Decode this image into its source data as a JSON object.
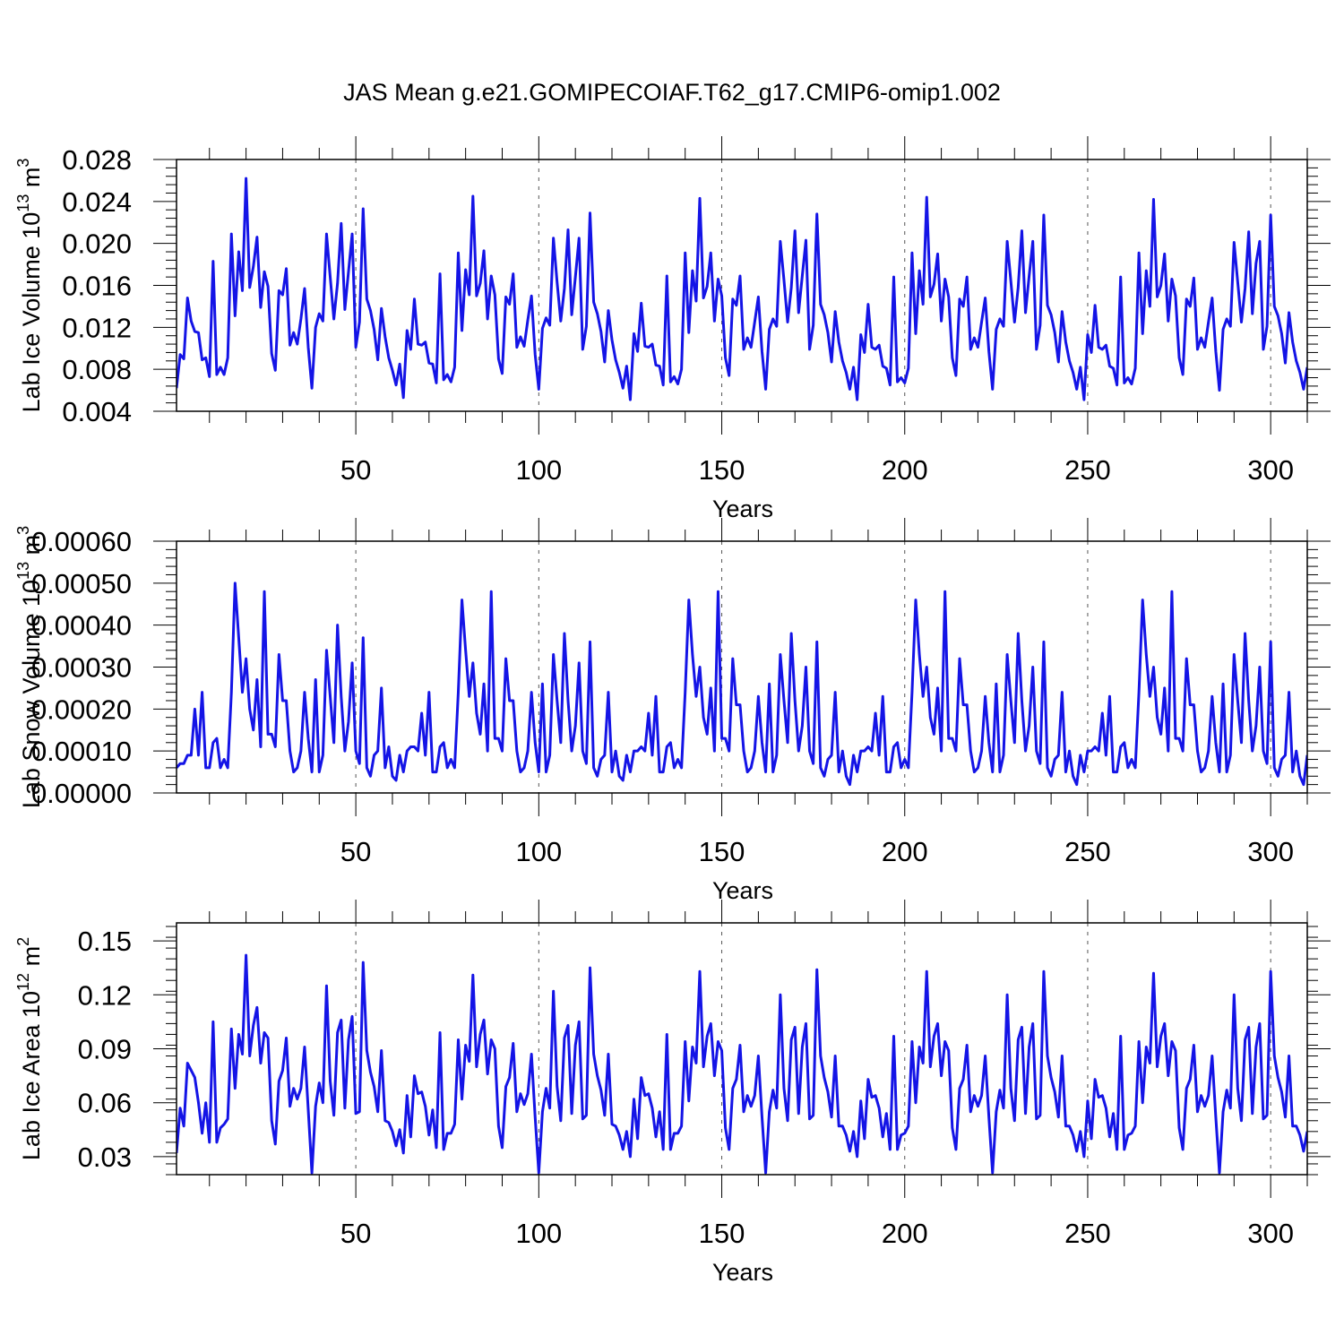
{
  "title": "JAS Mean g.e21.GOMIPECOIAF.T62_g17.CMIP6-omip1.002",
  "colors": {
    "line": "#1414e6",
    "axes": "#000000",
    "grid": "#555555"
  },
  "chart_data": [
    {
      "type": "line",
      "name": "panel-ice-volume",
      "ylabel": "Lab Ice Volume 10^13 m^3",
      "ylabel_parts": {
        "base": "Lab Ice Volume 10",
        "exp": "13",
        "unit": " m",
        "unit_exp": "3"
      },
      "xlabel": "Years",
      "xlim": [
        1,
        310
      ],
      "ylim": [
        0.004,
        0.028
      ],
      "xticks": [
        50,
        100,
        150,
        200,
        250,
        300
      ],
      "xtick_labels": [
        "50",
        "100",
        "150",
        "200",
        "250",
        "300"
      ],
      "yticks": [
        0.004,
        0.008,
        0.012,
        0.016,
        0.02,
        0.024,
        0.028
      ],
      "ytick_labels": [
        "0.004",
        "0.008",
        "0.012",
        "0.016",
        "0.020",
        "0.024",
        "0.028"
      ],
      "values": [
        0.0062,
        0.0094,
        0.009,
        0.0148,
        0.0126,
        0.0116,
        0.0115,
        0.0089,
        0.0091,
        0.0073,
        0.0183,
        0.0075,
        0.0082,
        0.0075,
        0.0091,
        0.0209,
        0.0131,
        0.0192,
        0.0155,
        0.0262,
        0.0158,
        0.0178,
        0.0206,
        0.0139,
        0.0173,
        0.0159,
        0.0095,
        0.0079,
        0.0155,
        0.0151,
        0.0176,
        0.0103,
        0.0115,
        0.0104,
        0.0128,
        0.0157,
        0.0101,
        0.0062,
        0.012,
        0.0133,
        0.0126,
        0.0209,
        0.0168,
        0.0128,
        0.0162,
        0.0219,
        0.0137,
        0.0173,
        0.0209,
        0.0101,
        0.0125,
        0.0233,
        0.0147,
        0.0136,
        0.0118,
        0.0089,
        0.0138,
        0.0111,
        0.0091,
        0.0079,
        0.0065,
        0.0085,
        0.0053,
        0.0117,
        0.0099,
        0.0147,
        0.0104,
        0.0103,
        0.0106,
        0.0086,
        0.0085,
        0.0067,
        0.0171,
        0.007,
        0.0075,
        0.0068,
        0.0082,
        0.0191,
        0.0117,
        0.0175,
        0.0151,
        0.0245,
        0.015,
        0.0162,
        0.0193,
        0.0128,
        0.0169,
        0.0151,
        0.009,
        0.0076,
        0.0149,
        0.0142,
        0.0171,
        0.0101,
        0.0111,
        0.0102,
        0.0127,
        0.015,
        0.0094,
        0.0061,
        0.0119,
        0.0129,
        0.0122,
        0.0205,
        0.0163,
        0.0126,
        0.0157,
        0.0213,
        0.0132,
        0.0168,
        0.0205,
        0.0099,
        0.0121,
        0.0229,
        0.0144,
        0.0133,
        0.0116,
        0.0087,
        0.0136,
        0.0108,
        0.0089,
        0.0077,
        0.0062,
        0.0083,
        0.0051,
        0.0114,
        0.0097,
        0.0143,
        0.0102,
        0.0101,
        0.0104,
        0.0084,
        0.0083,
        0.0065,
        0.0169,
        0.0068,
        0.0073,
        0.0066,
        0.008,
        0.0191,
        0.0115,
        0.0174,
        0.0145,
        0.0243,
        0.0148,
        0.0159,
        0.0191,
        0.0126,
        0.0166,
        0.015,
        0.0091,
        0.0074,
        0.0147,
        0.0141,
        0.0169,
        0.0099,
        0.011,
        0.0101,
        0.0125,
        0.0149,
        0.0097,
        0.0061,
        0.0118,
        0.0128,
        0.0121,
        0.0202,
        0.0165,
        0.0125,
        0.0158,
        0.0212,
        0.0134,
        0.0169,
        0.0203,
        0.0099,
        0.0122,
        0.0228,
        0.0142,
        0.0132,
        0.0115,
        0.0087,
        0.0135,
        0.0106,
        0.0088,
        0.0077,
        0.0061,
        0.0082,
        0.0051,
        0.0113,
        0.0096,
        0.0142,
        0.0101,
        0.0099,
        0.0103,
        0.0083,
        0.0081,
        0.0065,
        0.0168,
        0.0068,
        0.0072,
        0.0067,
        0.0081,
        0.0191,
        0.0114,
        0.0174,
        0.0142,
        0.0244,
        0.0149,
        0.0161,
        0.019,
        0.0126,
        0.0166,
        0.0149,
        0.0091,
        0.0074,
        0.0147,
        0.014,
        0.0168,
        0.0099,
        0.011,
        0.0101,
        0.0125,
        0.0148,
        0.0097,
        0.0061,
        0.0118,
        0.0128,
        0.0121,
        0.0202,
        0.0164,
        0.0125,
        0.0158,
        0.0212,
        0.0134,
        0.0169,
        0.0202,
        0.0099,
        0.0122,
        0.0227,
        0.0141,
        0.0132,
        0.0115,
        0.0087,
        0.0135,
        0.0106,
        0.0088,
        0.0077,
        0.0061,
        0.0082,
        0.0051,
        0.0113,
        0.0096,
        0.0141,
        0.0101,
        0.0099,
        0.0103,
        0.0083,
        0.0081,
        0.0065,
        0.0168,
        0.0067,
        0.0072,
        0.0066,
        0.0081,
        0.0191,
        0.0114,
        0.0174,
        0.014,
        0.0242,
        0.0149,
        0.016,
        0.019,
        0.0126,
        0.0166,
        0.015,
        0.0091,
        0.0075,
        0.0147,
        0.014,
        0.0167,
        0.0099,
        0.011,
        0.0101,
        0.0125,
        0.0148,
        0.0097,
        0.006,
        0.0118,
        0.0128,
        0.0121,
        0.0201,
        0.0163,
        0.0125,
        0.0157,
        0.0211,
        0.0133,
        0.0181,
        0.0202,
        0.0099,
        0.0121,
        0.0227,
        0.014,
        0.0131,
        0.0114,
        0.0086,
        0.0134,
        0.0106,
        0.0088,
        0.0077,
        0.0061,
        0.0082
      ]
    },
    {
      "type": "line",
      "name": "panel-snow-volume",
      "ylabel": "Lab Snow Volume 10^13 m^3",
      "ylabel_parts": {
        "base": "Lab Snow Volume 10",
        "exp": "13",
        "unit": " m",
        "unit_exp": "3"
      },
      "xlabel": "Years",
      "xlim": [
        1,
        310
      ],
      "ylim": [
        0.0,
        0.0006
      ],
      "xticks": [
        50,
        100,
        150,
        200,
        250,
        300
      ],
      "xtick_labels": [
        "50",
        "100",
        "150",
        "200",
        "250",
        "300"
      ],
      "yticks": [
        0.0,
        0.0001,
        0.0002,
        0.0003,
        0.0004,
        0.0005,
        0.0006
      ],
      "ytick_labels": [
        "0.00000",
        "0.00010",
        "0.00020",
        "0.00030",
        "0.00040",
        "0.00050",
        "0.00060"
      ],
      "values": [
        6e-05,
        7e-05,
        7e-05,
        9e-05,
        9e-05,
        0.0002,
        9e-05,
        0.00024,
        6e-05,
        6e-05,
        0.00012,
        0.00013,
        6e-05,
        8e-05,
        6e-05,
        0.00024,
        0.0005,
        0.00037,
        0.00024,
        0.00032,
        0.0002,
        0.00015,
        0.00027,
        0.00011,
        0.00048,
        0.00014,
        0.00014,
        0.00011,
        0.00033,
        0.00022,
        0.00022,
        0.0001,
        5e-05,
        6e-05,
        0.0001,
        0.00024,
        0.00013,
        5e-05,
        0.00027,
        5e-05,
        9e-05,
        0.00034,
        0.00023,
        0.00012,
        0.0004,
        0.00023,
        0.0001,
        0.00017,
        0.00031,
        0.0001,
        7e-05,
        0.00037,
        6e-05,
        4e-05,
        9e-05,
        0.0001,
        0.00025,
        6e-05,
        0.00011,
        4e-05,
        3e-05,
        9e-05,
        5e-05,
        0.0001,
        0.00011,
        0.00011,
        0.0001,
        0.00019,
        9e-05,
        0.00024,
        5e-05,
        5e-05,
        0.00011,
        0.00012,
        6e-05,
        8e-05,
        6e-05,
        0.00024,
        0.00046,
        0.00034,
        0.00023,
        0.00031,
        0.00019,
        0.00014,
        0.00026,
        0.0001,
        0.00048,
        0.00013,
        0.00013,
        0.0001,
        0.00032,
        0.00022,
        0.00022,
        0.0001,
        5e-05,
        6e-05,
        0.0001,
        0.00024,
        0.00012,
        5e-05,
        0.00026,
        5e-05,
        9e-05,
        0.00033,
        0.00022,
        0.00012,
        0.00038,
        0.00022,
        0.0001,
        0.00016,
        0.00031,
        0.0001,
        7e-05,
        0.00036,
        6e-05,
        4e-05,
        8e-05,
        9e-05,
        0.00024,
        5e-05,
        0.0001,
        4e-05,
        3e-05,
        9e-05,
        5e-05,
        0.0001,
        0.0001,
        0.00011,
        0.0001,
        0.00019,
        9e-05,
        0.00023,
        5e-05,
        5e-05,
        0.00011,
        0.00012,
        6e-05,
        8e-05,
        6e-05,
        0.00024,
        0.00046,
        0.00033,
        0.00023,
        0.0003,
        0.00018,
        0.00014,
        0.00025,
        0.0001,
        0.00048,
        0.00013,
        0.00013,
        0.0001,
        0.00032,
        0.00021,
        0.00021,
        0.0001,
        5e-05,
        6e-05,
        0.0001,
        0.00023,
        0.00012,
        5e-05,
        0.00026,
        5e-05,
        9e-05,
        0.00033,
        0.00022,
        0.00012,
        0.00038,
        0.00022,
        0.0001,
        0.00016,
        0.0003,
        0.0001,
        7e-05,
        0.00036,
        6e-05,
        4e-05,
        8e-05,
        9e-05,
        0.00024,
        5e-05,
        0.0001,
        4e-05,
        2e-05,
        9e-05,
        5e-05,
        0.0001,
        0.0001,
        0.00011,
        0.0001,
        0.00019,
        9e-05,
        0.00023,
        5e-05,
        5e-05,
        0.00011,
        0.00012,
        6e-05,
        8e-05,
        6e-05,
        0.00024,
        0.00046,
        0.00033,
        0.00023,
        0.0003,
        0.00018,
        0.00014,
        0.00025,
        0.0001,
        0.00048,
        0.00013,
        0.00013,
        0.0001,
        0.00032,
        0.00021,
        0.00021,
        0.0001,
        5e-05,
        6e-05,
        0.0001,
        0.00023,
        0.00012,
        5e-05,
        0.00026,
        5e-05,
        9e-05,
        0.00033,
        0.00022,
        0.00012,
        0.00038,
        0.00022,
        0.0001,
        0.00016,
        0.0003,
        0.0001,
        7e-05,
        0.00036,
        6e-05,
        4e-05,
        8e-05,
        9e-05,
        0.00024,
        5e-05,
        0.0001,
        4e-05,
        2e-05,
        9e-05,
        5e-05,
        0.0001,
        0.0001,
        0.00011,
        0.0001,
        0.00019,
        9e-05,
        0.00023,
        5e-05,
        5e-05,
        0.00011,
        0.00012,
        6e-05,
        8e-05,
        6e-05,
        0.00024,
        0.00046,
        0.00033,
        0.00023,
        0.0003,
        0.00018,
        0.00014,
        0.00025,
        0.0001,
        0.00048,
        0.00013,
        0.00013,
        0.0001,
        0.00032,
        0.00021,
        0.00021,
        0.0001,
        5e-05,
        6e-05,
        0.0001,
        0.00023,
        0.00012,
        5e-05,
        0.00026,
        5e-05,
        9e-05,
        0.00033,
        0.00022,
        0.00012,
        0.00038,
        0.00022,
        0.0001,
        0.00016,
        0.0003,
        0.0001,
        7e-05,
        0.00036,
        6e-05,
        4e-05,
        8e-05,
        9e-05,
        0.00024,
        5e-05,
        0.0001,
        4e-05,
        2e-05,
        9e-05
      ]
    },
    {
      "type": "line",
      "name": "panel-ice-area",
      "ylabel": "Lab Ice Area 10^12 m^2",
      "ylabel_parts": {
        "base": "Lab Ice Area 10",
        "exp": "12",
        "unit": " m",
        "unit_exp": "2"
      },
      "xlabel": "Years",
      "xlim": [
        1,
        310
      ],
      "ylim": [
        0.02,
        0.16
      ],
      "xticks": [
        50,
        100,
        150,
        200,
        250,
        300
      ],
      "xtick_labels": [
        "50",
        "100",
        "150",
        "200",
        "250",
        "300"
      ],
      "yticks": [
        0.03,
        0.06,
        0.09,
        0.12,
        0.15
      ],
      "ytick_labels": [
        "0.03",
        "0.06",
        "0.09",
        "0.12",
        "0.15"
      ],
      "values": [
        0.032,
        0.057,
        0.047,
        0.082,
        0.078,
        0.074,
        0.06,
        0.043,
        0.06,
        0.038,
        0.105,
        0.038,
        0.046,
        0.048,
        0.051,
        0.101,
        0.068,
        0.098,
        0.087,
        0.142,
        0.086,
        0.103,
        0.113,
        0.082,
        0.099,
        0.096,
        0.05,
        0.037,
        0.072,
        0.078,
        0.096,
        0.058,
        0.068,
        0.062,
        0.068,
        0.091,
        0.056,
        0.021,
        0.058,
        0.071,
        0.06,
        0.125,
        0.072,
        0.053,
        0.099,
        0.106,
        0.057,
        0.095,
        0.108,
        0.054,
        0.055,
        0.138,
        0.089,
        0.077,
        0.069,
        0.055,
        0.089,
        0.05,
        0.049,
        0.044,
        0.036,
        0.045,
        0.032,
        0.064,
        0.041,
        0.075,
        0.065,
        0.066,
        0.058,
        0.042,
        0.056,
        0.035,
        0.099,
        0.034,
        0.043,
        0.043,
        0.048,
        0.095,
        0.062,
        0.092,
        0.083,
        0.131,
        0.08,
        0.098,
        0.106,
        0.076,
        0.095,
        0.09,
        0.047,
        0.035,
        0.069,
        0.074,
        0.093,
        0.055,
        0.065,
        0.059,
        0.065,
        0.087,
        0.052,
        0.021,
        0.055,
        0.068,
        0.057,
        0.122,
        0.069,
        0.05,
        0.096,
        0.103,
        0.054,
        0.092,
        0.105,
        0.051,
        0.053,
        0.135,
        0.087,
        0.075,
        0.067,
        0.053,
        0.087,
        0.048,
        0.047,
        0.042,
        0.034,
        0.044,
        0.03,
        0.062,
        0.04,
        0.074,
        0.064,
        0.065,
        0.057,
        0.041,
        0.055,
        0.034,
        0.098,
        0.034,
        0.043,
        0.043,
        0.047,
        0.094,
        0.061,
        0.091,
        0.082,
        0.133,
        0.08,
        0.097,
        0.104,
        0.075,
        0.094,
        0.089,
        0.046,
        0.034,
        0.068,
        0.073,
        0.092,
        0.055,
        0.064,
        0.058,
        0.064,
        0.086,
        0.052,
        0.021,
        0.055,
        0.067,
        0.057,
        0.12,
        0.068,
        0.05,
        0.095,
        0.102,
        0.054,
        0.091,
        0.104,
        0.051,
        0.053,
        0.134,
        0.086,
        0.074,
        0.066,
        0.052,
        0.086,
        0.047,
        0.047,
        0.042,
        0.033,
        0.044,
        0.03,
        0.061,
        0.04,
        0.073,
        0.063,
        0.064,
        0.057,
        0.041,
        0.054,
        0.034,
        0.097,
        0.034,
        0.042,
        0.043,
        0.047,
        0.094,
        0.06,
        0.091,
        0.082,
        0.133,
        0.08,
        0.097,
        0.104,
        0.075,
        0.094,
        0.089,
        0.046,
        0.034,
        0.068,
        0.073,
        0.092,
        0.055,
        0.064,
        0.058,
        0.064,
        0.086,
        0.052,
        0.021,
        0.055,
        0.067,
        0.057,
        0.12,
        0.068,
        0.05,
        0.095,
        0.102,
        0.054,
        0.091,
        0.104,
        0.051,
        0.053,
        0.133,
        0.086,
        0.074,
        0.066,
        0.052,
        0.086,
        0.047,
        0.047,
        0.042,
        0.033,
        0.044,
        0.03,
        0.061,
        0.04,
        0.073,
        0.063,
        0.064,
        0.057,
        0.041,
        0.054,
        0.034,
        0.097,
        0.034,
        0.042,
        0.043,
        0.047,
        0.094,
        0.06,
        0.091,
        0.082,
        0.132,
        0.08,
        0.097,
        0.104,
        0.075,
        0.094,
        0.089,
        0.046,
        0.034,
        0.068,
        0.073,
        0.092,
        0.055,
        0.064,
        0.058,
        0.064,
        0.086,
        0.052,
        0.021,
        0.055,
        0.067,
        0.057,
        0.12,
        0.068,
        0.05,
        0.095,
        0.102,
        0.054,
        0.091,
        0.104,
        0.051,
        0.053,
        0.133,
        0.086,
        0.074,
        0.066,
        0.052,
        0.086,
        0.047,
        0.047,
        0.042,
        0.033,
        0.044
      ]
    }
  ]
}
